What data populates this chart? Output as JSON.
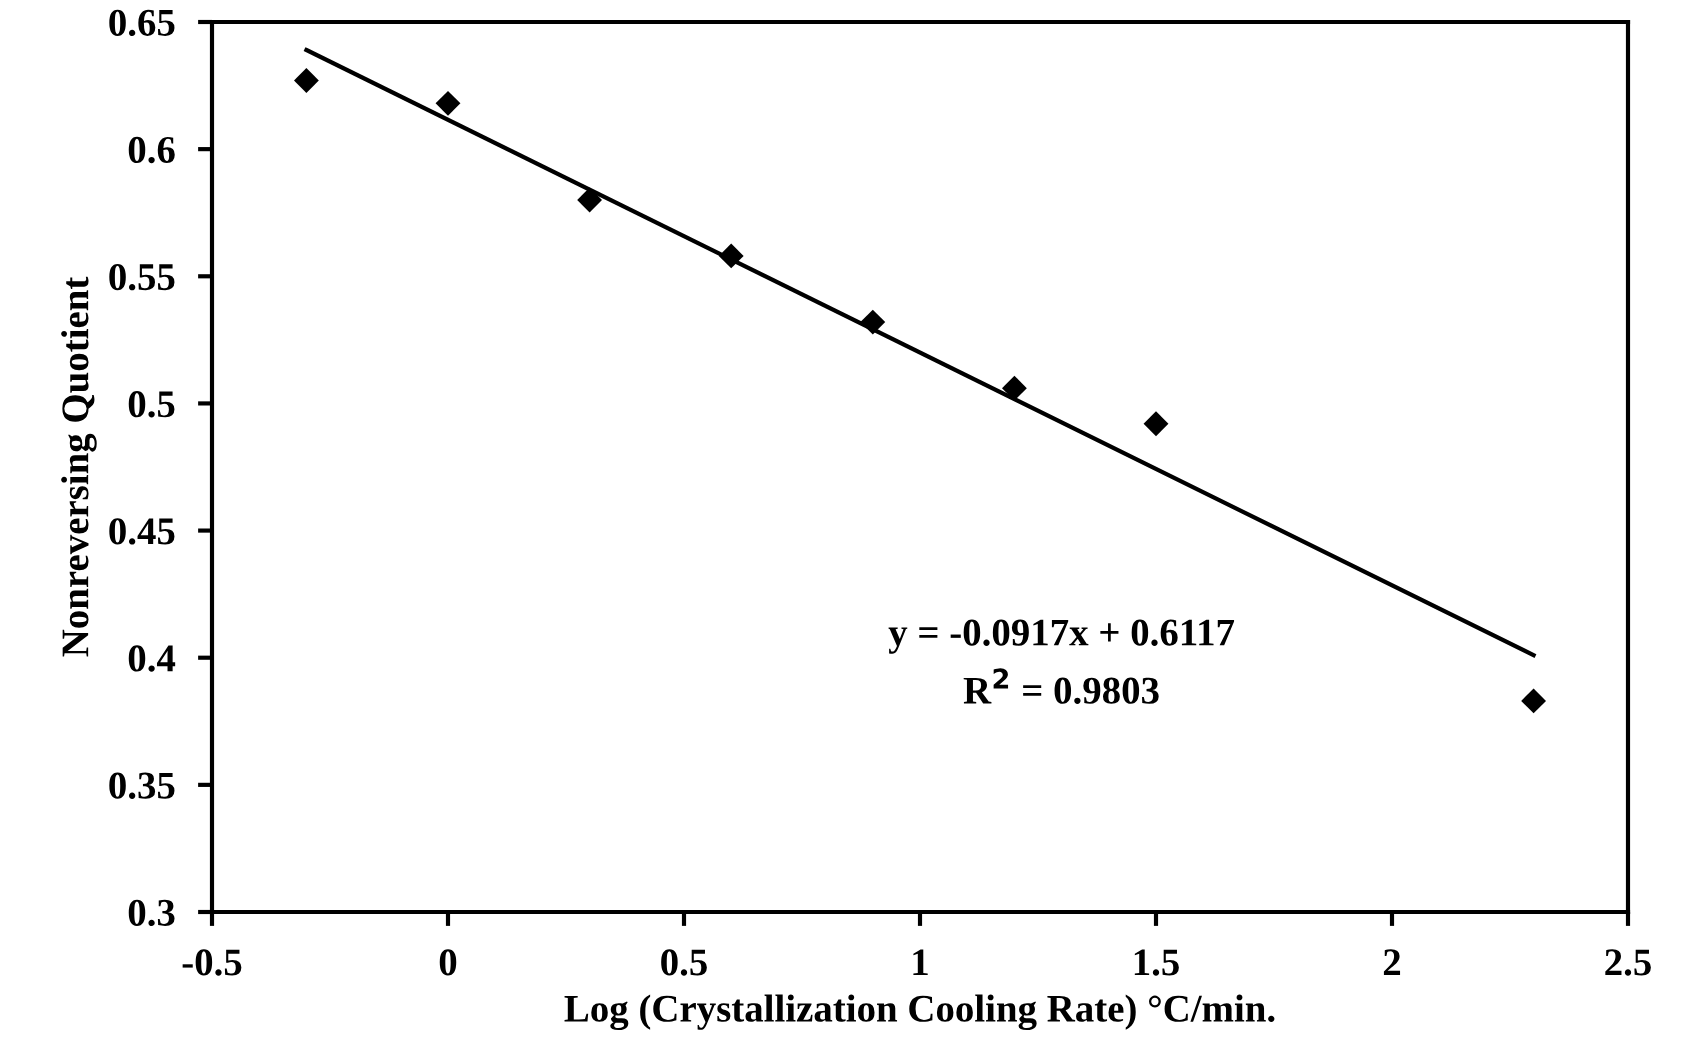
{
  "chart_data": {
    "type": "scatter",
    "xlabel": "Log (Crystallization Cooling Rate) °C/min.",
    "ylabel": "Nonreversing Quotient",
    "series": [
      {
        "color": "#000000",
        "marker": "diamond",
        "x": [
          -0.3,
          0.0,
          0.3,
          0.6,
          0.9,
          1.2,
          1.5,
          2.3
        ],
        "values": [
          0.627,
          0.618,
          0.58,
          0.558,
          0.532,
          0.506,
          0.492,
          0.383
        ]
      },
      {
        "type": "line",
        "color": "#000000",
        "marker": "none",
        "line_style": "solid",
        "x": [
          -0.3,
          2.3
        ],
        "values": [
          0.639,
          0.401
        ]
      }
    ],
    "annotations": [
      "y = -0.0917x + 0.6117",
      "R$^{2}$ = 0.9803"
    ],
    "xlim": [
      -0.5,
      2.5
    ],
    "xticks": [
      -0.5,
      0,
      0.5,
      1,
      1.5,
      2,
      2.5
    ],
    "ylim": [
      0.3,
      0.65
    ],
    "yticks": [
      0.3,
      0.35,
      0.4,
      0.45,
      0.5,
      0.55,
      0.6,
      0.65
    ],
    "grid": false,
    "legend": false
  }
}
